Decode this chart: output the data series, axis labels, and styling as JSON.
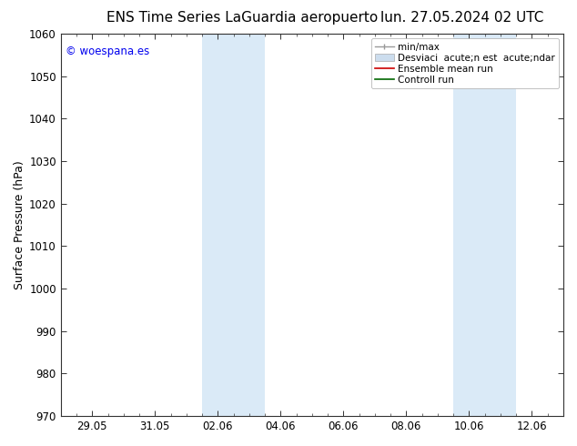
{
  "title_left": "ENS Time Series LaGuardia aeropuerto",
  "title_right": "lun. 27.05.2024 02 UTC",
  "ylabel": "Surface Pressure (hPa)",
  "ylim": [
    970,
    1060
  ],
  "yticks": [
    970,
    980,
    990,
    1000,
    1010,
    1020,
    1030,
    1040,
    1050,
    1060
  ],
  "xtick_labels": [
    "29.05",
    "31.05",
    "02.06",
    "04.06",
    "06.06",
    "08.06",
    "10.06",
    "12.06"
  ],
  "xtick_positions": [
    0,
    1,
    2,
    3,
    4,
    5,
    6,
    7
  ],
  "watermark": "© woespana.es",
  "watermark_color": "#0000ee",
  "bg_color": "#ffffff",
  "shaded_color": "#daeaf7",
  "shaded_regions": [
    {
      "x_start": 1.75,
      "x_end": 2.25
    },
    {
      "x_start": 2.25,
      "x_end": 2.75
    },
    {
      "x_start": 5.75,
      "x_end": 6.25
    },
    {
      "x_start": 6.25,
      "x_end": 6.75
    }
  ],
  "title_fontsize": 11,
  "tick_fontsize": 8.5,
  "ylabel_fontsize": 9,
  "legend_fontsize": 7.5,
  "watermark_fontsize": 8.5
}
